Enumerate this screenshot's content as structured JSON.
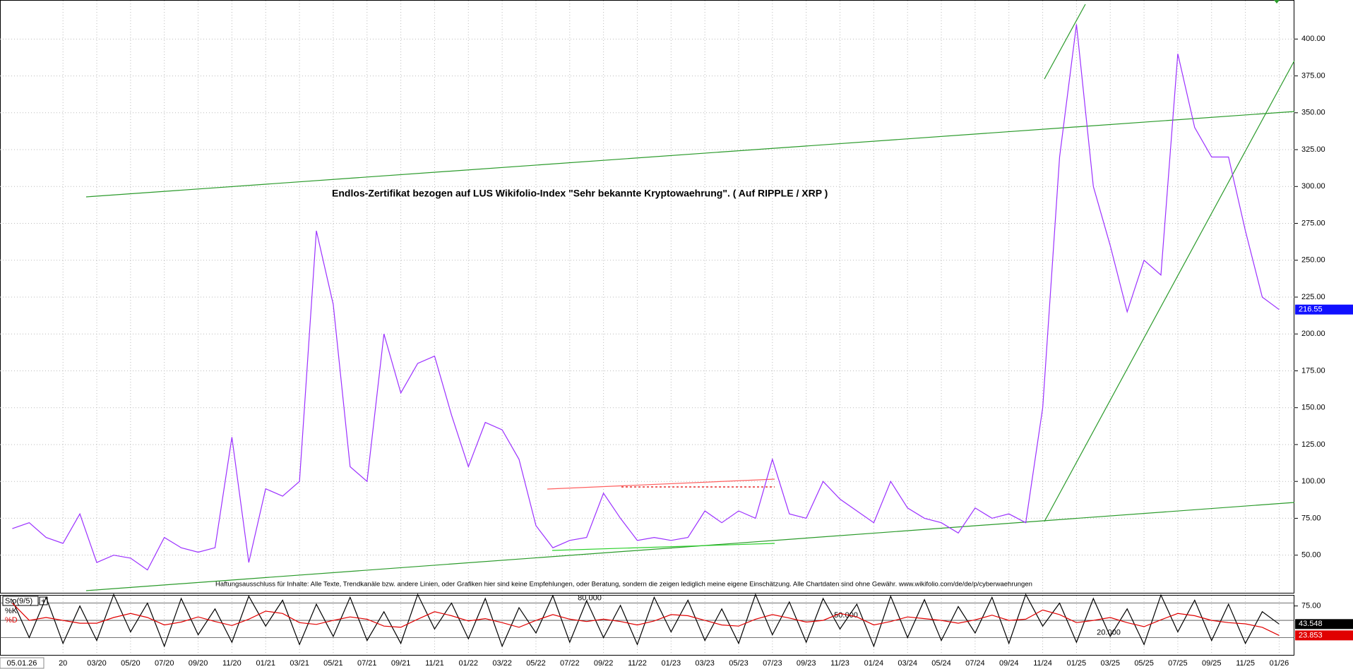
{
  "chart_data": [
    {
      "type": "line",
      "title": "Endlos-Zertifikat bezogen auf LUS Wikifolio-Index \"Sehr bekannte Kryptowaehrung\". ( Auf RIPPLE / XRP )",
      "disclaimer": "Haftungsausschluss für Inhalte: Alle Texte, Trendkanäle bzw. andere Linien, oder Grafiken hier sind keine Empfehlungen, oder Beratung, sondern die zeigen lediglich meine eigene Einschätzung. Alle Chartdaten sind ohne Gewähr. www.wikifolio.com/de/de/p/cyberwaehrungen",
      "date_label": "05.01.26",
      "series": [
        {
          "color": "#9b30ff",
          "values": [
            68,
            72,
            62,
            58,
            78,
            45,
            50,
            48,
            40,
            62,
            55,
            52,
            55,
            130,
            45,
            95,
            90,
            100,
            270,
            220,
            110,
            100,
            200,
            160,
            180,
            185,
            145,
            110,
            140,
            135,
            115,
            70,
            55,
            60,
            62,
            92,
            75,
            60,
            62,
            60,
            62,
            80,
            72,
            80,
            75,
            115,
            78,
            75,
            100,
            88,
            80,
            72,
            100,
            82,
            75,
            72,
            65,
            82,
            75,
            78,
            72,
            150,
            320,
            410,
            300,
            260,
            215,
            250,
            240,
            390,
            340,
            320,
            320,
            270,
            225,
            216.55
          ]
        }
      ],
      "ylim": [
        24,
        426
      ],
      "yticks": [
        {
          "value": 400,
          "label": "400.00"
        },
        {
          "value": 375,
          "label": "375.00"
        },
        {
          "value": 350,
          "label": "350.00"
        },
        {
          "value": 325,
          "label": "325.00"
        },
        {
          "value": 300,
          "label": "300.00"
        },
        {
          "value": 275,
          "label": "275.00"
        },
        {
          "value": 250,
          "label": "250.00"
        },
        {
          "value": 225,
          "label": "225.00"
        },
        {
          "value": 200,
          "label": "200.00"
        },
        {
          "value": 175,
          "label": "175.00"
        },
        {
          "value": 150,
          "label": "150.00"
        },
        {
          "value": 125,
          "label": "125.00"
        },
        {
          "value": 100,
          "label": "100.00"
        },
        {
          "value": 75,
          "label": "75.00"
        },
        {
          "value": 50,
          "label": "50.00"
        }
      ],
      "grid": true
    },
    {
      "type": "line",
      "title": "Sto(9/5)",
      "categories": [
        null,
        null,
        null,
        "20",
        null,
        "03/20",
        null,
        "05/20",
        null,
        "07/20",
        null,
        "09/20",
        null,
        "11/20",
        null,
        "01/21",
        null,
        "03/21",
        null,
        "05/21",
        null,
        "07/21",
        null,
        "09/21",
        null,
        "11/21",
        null,
        "01/22",
        null,
        "03/22",
        null,
        "05/22",
        null,
        "07/22",
        null,
        "09/22",
        null,
        "11/22",
        null,
        "01/23",
        null,
        "03/23",
        null,
        "05/23",
        null,
        "07/23",
        null,
        "09/23",
        null,
        "11/23",
        null,
        "01/24",
        null,
        "03/24",
        null,
        "05/24",
        null,
        "07/24",
        null,
        "09/24",
        null,
        "11/24",
        null,
        "01/25",
        null,
        "03/25",
        null,
        "05/25",
        null,
        "07/25",
        null,
        "09/25",
        null,
        "11/25",
        null,
        "01/26"
      ],
      "series": [
        {
          "name": "%K",
          "color": "#000000",
          "values": [
            85,
            20,
            90,
            10,
            75,
            15,
            95,
            30,
            80,
            5,
            88,
            25,
            70,
            12,
            92,
            40,
            85,
            8,
            78,
            22,
            90,
            15,
            65,
            10,
            95,
            35,
            80,
            18,
            88,
            5,
            72,
            28,
            93,
            12,
            84,
            20,
            76,
            8,
            90,
            30,
            85,
            15,
            70,
            10,
            95,
            25,
            82,
            12,
            88,
            35,
            78,
            5,
            92,
            20,
            86,
            15,
            74,
            28,
            90,
            10,
            95,
            40,
            80,
            12,
            88,
            22,
            70,
            8,
            94,
            30,
            85,
            15,
            78,
            10,
            65,
            43.548
          ]
        },
        {
          "name": "%D",
          "color": "#e00000",
          "values": [
            80,
            50,
            55,
            50,
            45,
            45,
            55,
            62,
            55,
            42,
            47,
            56,
            48,
            41,
            52,
            66,
            62,
            46,
            43,
            50,
            56,
            52,
            40,
            38,
            52,
            65,
            58,
            49,
            53,
            46,
            38,
            50,
            60,
            52,
            48,
            52,
            48,
            42,
            49,
            60,
            58,
            50,
            42,
            40,
            52,
            60,
            54,
            47,
            50,
            62,
            56,
            42,
            48,
            56,
            53,
            50,
            45,
            51,
            59,
            50,
            52,
            68,
            60,
            46,
            50,
            55,
            46,
            39,
            51,
            62,
            58,
            50,
            46,
            44,
            38,
            23.853
          ]
        }
      ],
      "ylim": [
        -10,
        93
      ],
      "yticks": [
        {
          "value": 75,
          "label": "75.00"
        }
      ],
      "levels": [
        {
          "value": 80,
          "label": "80.000"
        },
        {
          "value": 50,
          "label": "50.000"
        },
        {
          "value": 20,
          "label": "20.000"
        }
      ],
      "grid": true
    }
  ]
}
